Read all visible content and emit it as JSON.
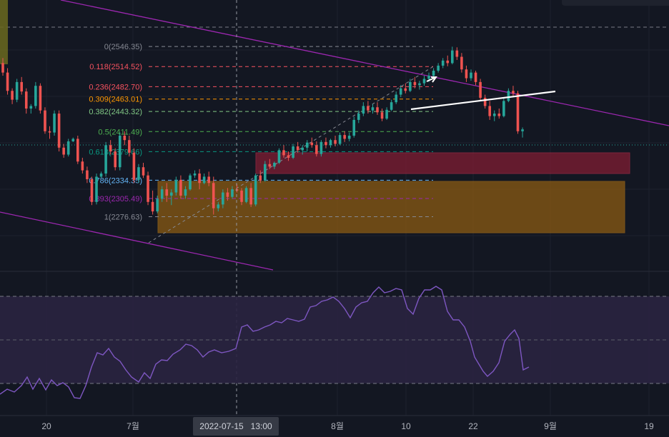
{
  "colors": {
    "background": "#131722",
    "up": "#26a69a",
    "down": "#ef5350",
    "grid": "#1e222d",
    "channel": "#9c27b0",
    "trendline": "#ffffff",
    "rsi_line": "#7e57c2",
    "rsi_band": "#2a2440",
    "red_zone": "#7f1d33",
    "orange_zone": "#8a5a12",
    "olive_zone": "#6b6a1e"
  },
  "time_axis": {
    "labels": [
      "20",
      "7월",
      "8월",
      "10",
      "22",
      "9월",
      "19"
    ],
    "crosshair_badge": "2022-07-15   13:00"
  },
  "fib_levels": [
    {
      "ratio": "0",
      "price": "2546.35",
      "color": "#868993"
    },
    {
      "ratio": "0.118",
      "price": "2514.52",
      "color": "#f7525f"
    },
    {
      "ratio": "0.236",
      "price": "2482.70",
      "color": "#f7525f"
    },
    {
      "ratio": "0.309",
      "price": "2463.01",
      "color": "#ff9800"
    },
    {
      "ratio": "0.382",
      "price": "2443.32",
      "color": "#81c784"
    },
    {
      "ratio": "0.5",
      "price": "2411.49",
      "color": "#4caf50"
    },
    {
      "ratio": "0.618",
      "price": "2379.66",
      "color": "#089981"
    },
    {
      "ratio": "0.786",
      "price": "2334.35",
      "color": "#64b5f6"
    },
    {
      "ratio": "0.893",
      "price": "2305.49",
      "color": "#9c27b0"
    },
    {
      "ratio": "1",
      "price": "2276.63",
      "color": "#868993"
    }
  ],
  "chart_data": {
    "type": "candlestick",
    "y_range": [
      2190,
      2620
    ],
    "candles": [
      [
        2520,
        2528,
        2500,
        2505
      ],
      [
        2505,
        2512,
        2470,
        2476
      ],
      [
        2476,
        2480,
        2455,
        2462
      ],
      [
        2462,
        2495,
        2458,
        2490
      ],
      [
        2490,
        2498,
        2470,
        2475
      ],
      [
        2475,
        2480,
        2440,
        2448
      ],
      [
        2448,
        2455,
        2440,
        2452
      ],
      [
        2452,
        2490,
        2448,
        2484
      ],
      [
        2484,
        2488,
        2440,
        2445
      ],
      [
        2445,
        2450,
        2408,
        2412
      ],
      [
        2412,
        2420,
        2400,
        2410
      ],
      [
        2410,
        2445,
        2405,
        2440
      ],
      [
        2440,
        2445,
        2380,
        2386
      ],
      [
        2386,
        2392,
        2370,
        2375
      ],
      [
        2375,
        2400,
        2372,
        2396
      ],
      [
        2396,
        2402,
        2395,
        2400
      ],
      [
        2400,
        2405,
        2360,
        2364
      ],
      [
        2364,
        2370,
        2345,
        2350
      ],
      [
        2350,
        2356,
        2330,
        2336
      ],
      [
        2336,
        2340,
        2295,
        2300
      ],
      [
        2300,
        2345,
        2296,
        2340
      ],
      [
        2340,
        2348,
        2338,
        2345
      ],
      [
        2345,
        2395,
        2340,
        2390
      ],
      [
        2390,
        2398,
        2375,
        2380
      ],
      [
        2380,
        2385,
        2350,
        2355
      ],
      [
        2355,
        2410,
        2350,
        2405
      ],
      [
        2405,
        2412,
        2390,
        2398
      ],
      [
        2398,
        2405,
        2372,
        2378
      ],
      [
        2378,
        2385,
        2330,
        2335
      ],
      [
        2335,
        2360,
        2330,
        2355
      ],
      [
        2355,
        2362,
        2338,
        2342
      ],
      [
        2342,
        2348,
        2295,
        2300
      ],
      [
        2300,
        2318,
        2280,
        2285
      ],
      [
        2285,
        2310,
        2282,
        2305
      ],
      [
        2305,
        2325,
        2300,
        2320
      ],
      [
        2320,
        2330,
        2300,
        2310
      ],
      [
        2310,
        2320,
        2295,
        2315
      ],
      [
        2315,
        2340,
        2310,
        2335
      ],
      [
        2335,
        2342,
        2305,
        2310
      ],
      [
        2310,
        2325,
        2305,
        2320
      ],
      [
        2320,
        2345,
        2318,
        2342
      ],
      [
        2342,
        2350,
        2338,
        2345
      ],
      [
        2345,
        2352,
        2320,
        2330
      ],
      [
        2330,
        2345,
        2328,
        2340
      ],
      [
        2340,
        2348,
        2325,
        2330
      ],
      [
        2330,
        2340,
        2280,
        2290
      ],
      [
        2290,
        2300,
        2285,
        2296
      ],
      [
        2296,
        2320,
        2290,
        2315
      ],
      [
        2315,
        2322,
        2302,
        2308
      ],
      [
        2308,
        2325,
        2305,
        2320
      ],
      [
        2320,
        2328,
        2315,
        2318
      ],
      [
        2318,
        2322,
        2295,
        2300
      ],
      [
        2300,
        2325,
        2298,
        2322
      ],
      [
        2322,
        2330,
        2292,
        2296
      ],
      [
        2296,
        2345,
        2293,
        2342
      ],
      [
        2342,
        2350,
        2330,
        2334
      ],
      [
        2334,
        2365,
        2332,
        2360
      ],
      [
        2360,
        2368,
        2352,
        2356
      ],
      [
        2356,
        2364,
        2352,
        2362
      ],
      [
        2362,
        2385,
        2360,
        2382
      ],
      [
        2382,
        2390,
        2370,
        2374
      ],
      [
        2374,
        2380,
        2365,
        2370
      ],
      [
        2370,
        2392,
        2368,
        2388
      ],
      [
        2388,
        2395,
        2378,
        2382
      ],
      [
        2382,
        2390,
        2375,
        2386
      ],
      [
        2386,
        2398,
        2380,
        2394
      ],
      [
        2394,
        2402,
        2386,
        2390
      ],
      [
        2390,
        2396,
        2372,
        2376
      ],
      [
        2376,
        2398,
        2372,
        2395
      ],
      [
        2395,
        2402,
        2385,
        2390
      ],
      [
        2390,
        2400,
        2386,
        2398
      ],
      [
        2398,
        2405,
        2388,
        2392
      ],
      [
        2392,
        2410,
        2390,
        2406
      ],
      [
        2406,
        2412,
        2395,
        2400
      ],
      [
        2400,
        2410,
        2396,
        2405
      ],
      [
        2405,
        2435,
        2402,
        2430
      ],
      [
        2430,
        2445,
        2425,
        2440
      ],
      [
        2440,
        2458,
        2436,
        2452
      ],
      [
        2452,
        2460,
        2440,
        2445
      ],
      [
        2445,
        2455,
        2440,
        2450
      ],
      [
        2450,
        2458,
        2438,
        2442
      ],
      [
        2442,
        2448,
        2428,
        2432
      ],
      [
        2432,
        2450,
        2430,
        2446
      ],
      [
        2446,
        2462,
        2444,
        2458
      ],
      [
        2458,
        2475,
        2455,
        2470
      ],
      [
        2470,
        2485,
        2466,
        2480
      ],
      [
        2480,
        2488,
        2472,
        2476
      ],
      [
        2476,
        2495,
        2474,
        2490
      ],
      [
        2490,
        2498,
        2480,
        2485
      ],
      [
        2485,
        2492,
        2478,
        2488
      ],
      [
        2488,
        2500,
        2484,
        2495
      ],
      [
        2495,
        2505,
        2490,
        2500
      ],
      [
        2500,
        2512,
        2496,
        2508
      ],
      [
        2508,
        2520,
        2505,
        2516
      ],
      [
        2516,
        2528,
        2512,
        2524
      ],
      [
        2524,
        2532,
        2515,
        2520
      ],
      [
        2520,
        2546,
        2518,
        2540
      ],
      [
        2540,
        2545,
        2525,
        2530
      ],
      [
        2530,
        2536,
        2505,
        2510
      ],
      [
        2510,
        2516,
        2490,
        2496
      ],
      [
        2496,
        2510,
        2492,
        2505
      ],
      [
        2505,
        2508,
        2485,
        2490
      ],
      [
        2490,
        2495,
        2460,
        2465
      ],
      [
        2465,
        2470,
        2448,
        2452
      ],
      [
        2452,
        2460,
        2430,
        2436
      ],
      [
        2436,
        2445,
        2428,
        2440
      ],
      [
        2440,
        2448,
        2432,
        2436
      ],
      [
        2436,
        2465,
        2434,
        2460
      ],
      [
        2460,
        2480,
        2458,
        2476
      ],
      [
        2476,
        2484,
        2468,
        2472
      ],
      [
        2472,
        2476,
        2408,
        2412
      ],
      [
        2412,
        2418,
        2402,
        2415
      ]
    ]
  }
}
